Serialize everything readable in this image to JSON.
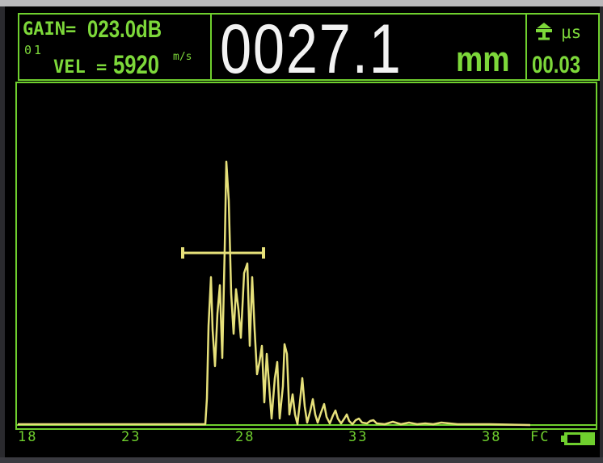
{
  "header": {
    "gain_label": "GAIN=",
    "gain_value": "023.0dB",
    "channel": "01",
    "vel_label": "VEL =",
    "vel_value": "5920",
    "vel_unit": "m/s",
    "thickness_value": "0027.1",
    "thickness_unit": "mm",
    "time_unit": "μs",
    "time_value": "00.03",
    "mode_icon": "probe-icon"
  },
  "waveform": {
    "axis_ticks": [
      "18",
      "23",
      "28",
      "33",
      "38"
    ],
    "status_label": "FC",
    "battery_icon": "battery-icon",
    "trace_color": "#e6e07a",
    "frame_color": "#6fcf2e"
  }
}
